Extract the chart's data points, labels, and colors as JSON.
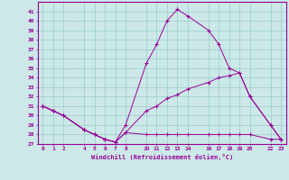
{
  "xlabel": "Windchill (Refroidissement éolien,°C)",
  "x_ticks": [
    0,
    1,
    2,
    4,
    5,
    6,
    7,
    8,
    10,
    11,
    12,
    13,
    14,
    16,
    17,
    18,
    19,
    20,
    22,
    23
  ],
  "ylim": [
    27,
    42
  ],
  "xlim": [
    -0.5,
    23.5
  ],
  "y_ticks": [
    27,
    28,
    29,
    30,
    31,
    32,
    33,
    34,
    35,
    36,
    37,
    38,
    39,
    40,
    41
  ],
  "bg_color": "#cce8e8",
  "line_color": "#990099",
  "grid_color": "#99cccc",
  "series1_x": [
    0,
    1,
    2,
    4,
    5,
    6,
    7,
    8,
    10,
    11,
    12,
    13,
    14,
    16,
    17,
    18,
    19,
    20,
    22,
    23
  ],
  "series1_y": [
    31.0,
    30.5,
    30.0,
    28.5,
    28.0,
    27.5,
    27.2,
    29.0,
    35.5,
    37.5,
    40.0,
    41.2,
    40.5,
    39.0,
    37.5,
    35.0,
    34.5,
    32.0,
    29.0,
    27.5
  ],
  "series2_x": [
    0,
    1,
    2,
    4,
    5,
    6,
    7,
    8,
    10,
    11,
    12,
    13,
    14,
    16,
    17,
    18,
    19,
    20,
    22,
    23
  ],
  "series2_y": [
    31.0,
    30.5,
    30.0,
    28.5,
    28.0,
    27.5,
    27.2,
    28.2,
    30.5,
    31.0,
    31.8,
    32.2,
    32.8,
    33.5,
    34.0,
    34.2,
    34.5,
    32.0,
    29.0,
    27.5
  ],
  "series3_x": [
    0,
    1,
    2,
    4,
    5,
    6,
    7,
    8,
    10,
    11,
    12,
    13,
    14,
    16,
    17,
    18,
    19,
    20,
    22,
    23
  ],
  "series3_y": [
    31.0,
    30.5,
    30.0,
    28.5,
    28.0,
    27.5,
    27.2,
    28.2,
    28.0,
    28.0,
    28.0,
    28.0,
    28.0,
    28.0,
    28.0,
    28.0,
    28.0,
    28.0,
    27.5,
    27.5
  ]
}
